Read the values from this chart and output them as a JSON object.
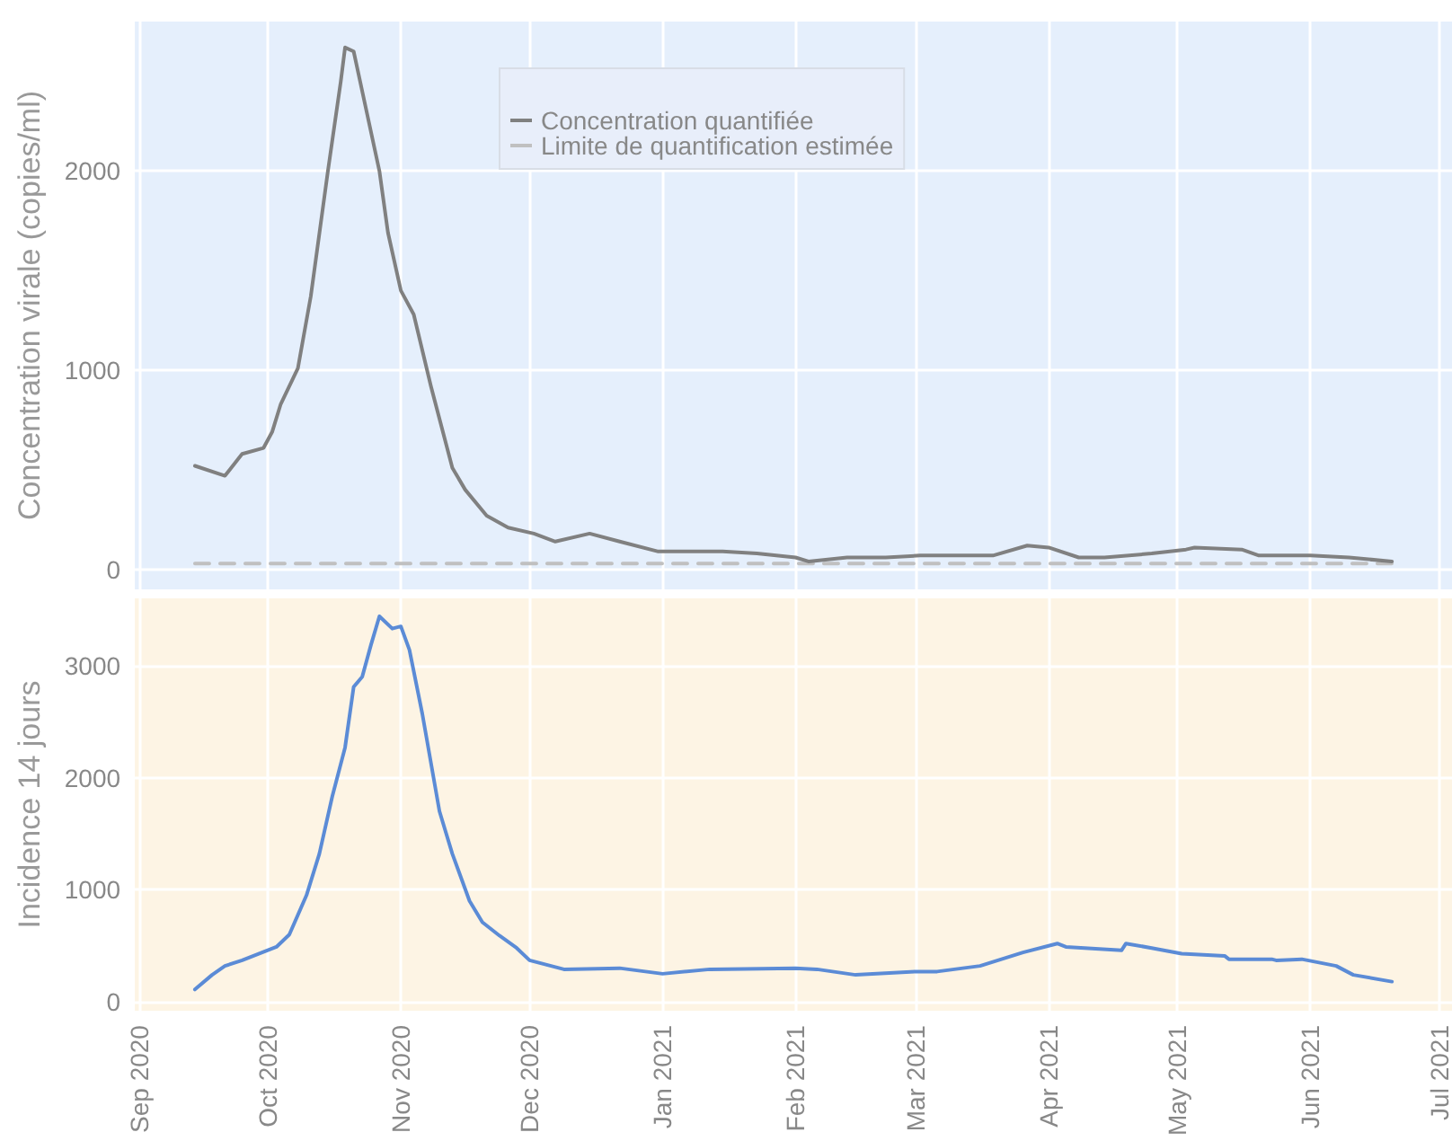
{
  "chart_data": [
    {
      "type": "line",
      "ylabel": "Concentration virale (copies/ml)",
      "xlim": [
        "2020-08-31",
        "2021-07-04"
      ],
      "ylim": [
        -100,
        2750
      ],
      "yticks": [
        0,
        1000,
        2000
      ],
      "xticks": [
        "2020-09-01",
        "2020-10-01",
        "2020-11-01",
        "2020-12-01",
        "2021-01-01",
        "2021-02-01",
        "2021-03-01",
        "2021-04-01",
        "2021-05-01",
        "2021-06-01",
        "2021-07-01"
      ],
      "tick_labels": "y",
      "grid": true,
      "legend": "top",
      "marker": "none",
      "series": [
        {
          "name": "Concentration quantifiée",
          "color": "#808080",
          "line_style": "solid",
          "x": [
            "2020-09-14",
            "2020-09-21",
            "2020-09-25",
            "2020-09-30",
            "2020-10-02",
            "2020-10-04",
            "2020-10-08",
            "2020-10-11",
            "2020-10-15",
            "2020-10-18",
            "2020-10-19",
            "2020-10-21",
            "2020-10-23",
            "2020-10-27",
            "2020-10-29",
            "2020-11-01",
            "2020-11-04",
            "2020-11-08",
            "2020-11-13",
            "2020-11-16",
            "2020-11-21",
            "2020-11-26",
            "2020-12-02",
            "2020-12-07",
            "2020-12-15",
            "2020-12-22",
            "2020-12-31",
            "2021-01-15",
            "2021-01-23",
            "2021-02-01",
            "2021-02-04",
            "2021-02-13",
            "2021-02-22",
            "2021-03-02",
            "2021-03-19",
            "2021-03-27",
            "2021-04-01",
            "2021-04-08",
            "2021-04-14",
            "2021-04-25",
            "2021-05-03",
            "2021-05-05",
            "2021-05-16",
            "2021-05-20",
            "2021-06-01",
            "2021-06-10",
            "2021-06-20"
          ],
          "values": [
            520,
            470,
            580,
            610,
            690,
            830,
            1010,
            1370,
            2000,
            2450,
            2620,
            2600,
            2400,
            2000,
            1690,
            1400,
            1280,
            920,
            510,
            400,
            270,
            210,
            180,
            140,
            180,
            140,
            90,
            90,
            80,
            60,
            40,
            60,
            60,
            70,
            70,
            120,
            110,
            60,
            60,
            80,
            100,
            110,
            100,
            70,
            70,
            60,
            40
          ]
        },
        {
          "name": "Limite de quantification estimée",
          "color": "#c0c0c0",
          "line_style": "dashed",
          "x": [
            "2020-09-14",
            "2021-06-20"
          ],
          "values": [
            30,
            30
          ]
        }
      ]
    },
    {
      "type": "line",
      "ylabel": "Incidence 14 jours",
      "xlim": [
        "2020-08-31",
        "2021-07-04"
      ],
      "ylim": [
        -80,
        3600
      ],
      "yticks": [
        0,
        1000,
        2000,
        3000
      ],
      "xticks": [
        {
          "value": "2020-09-01",
          "label": "Sep 2020"
        },
        {
          "value": "2020-10-01",
          "label": "Oct 2020"
        },
        {
          "value": "2020-11-01",
          "label": "Nov 2020"
        },
        {
          "value": "2020-12-01",
          "label": "Dec 2020"
        },
        {
          "value": "2021-01-01",
          "label": "Jan 2021"
        },
        {
          "value": "2021-02-01",
          "label": "Feb 2021"
        },
        {
          "value": "2021-03-01",
          "label": "Mar 2021"
        },
        {
          "value": "2021-04-01",
          "label": "Apr 2021"
        },
        {
          "value": "2021-05-01",
          "label": "May 2021"
        },
        {
          "value": "2021-06-01",
          "label": "Jun 2021"
        },
        {
          "value": "2021-07-01",
          "label": "Jul 2021"
        }
      ],
      "grid": true,
      "marker": "none",
      "series": [
        {
          "color": "#5b8bd6",
          "line_style": "solid",
          "x": [
            "2020-09-14",
            "2020-09-18",
            "2020-09-21",
            "2020-09-25",
            "2020-09-29",
            "2020-10-03",
            "2020-10-06",
            "2020-10-10",
            "2020-10-13",
            "2020-10-16",
            "2020-10-19",
            "2020-10-21",
            "2020-10-23",
            "2020-10-25",
            "2020-10-27",
            "2020-10-30",
            "2020-11-01",
            "2020-11-03",
            "2020-11-06",
            "2020-11-10",
            "2020-11-13",
            "2020-11-17",
            "2020-11-20",
            "2020-11-24",
            "2020-11-28",
            "2020-12-01",
            "2020-12-09",
            "2020-12-22",
            "2021-01-01",
            "2021-01-12",
            "2021-02-01",
            "2021-02-06",
            "2021-02-15",
            "2021-03-01",
            "2021-03-06",
            "2021-03-16",
            "2021-03-26",
            "2021-04-03",
            "2021-04-05",
            "2021-04-18",
            "2021-04-19",
            "2021-04-25",
            "2021-05-02",
            "2021-05-12",
            "2021-05-13",
            "2021-05-23",
            "2021-05-24",
            "2021-05-30",
            "2021-06-07",
            "2021-06-11",
            "2021-06-20"
          ],
          "values": [
            110,
            240,
            320,
            370,
            430,
            490,
            600,
            950,
            1320,
            1830,
            2270,
            2810,
            2900,
            3180,
            3440,
            3330,
            3350,
            3140,
            2570,
            1700,
            1320,
            900,
            710,
            590,
            480,
            370,
            290,
            300,
            250,
            290,
            300,
            290,
            240,
            270,
            270,
            320,
            440,
            520,
            490,
            460,
            520,
            480,
            430,
            410,
            380,
            380,
            370,
            380,
            320,
            240,
            180
          ]
        }
      ]
    }
  ]
}
